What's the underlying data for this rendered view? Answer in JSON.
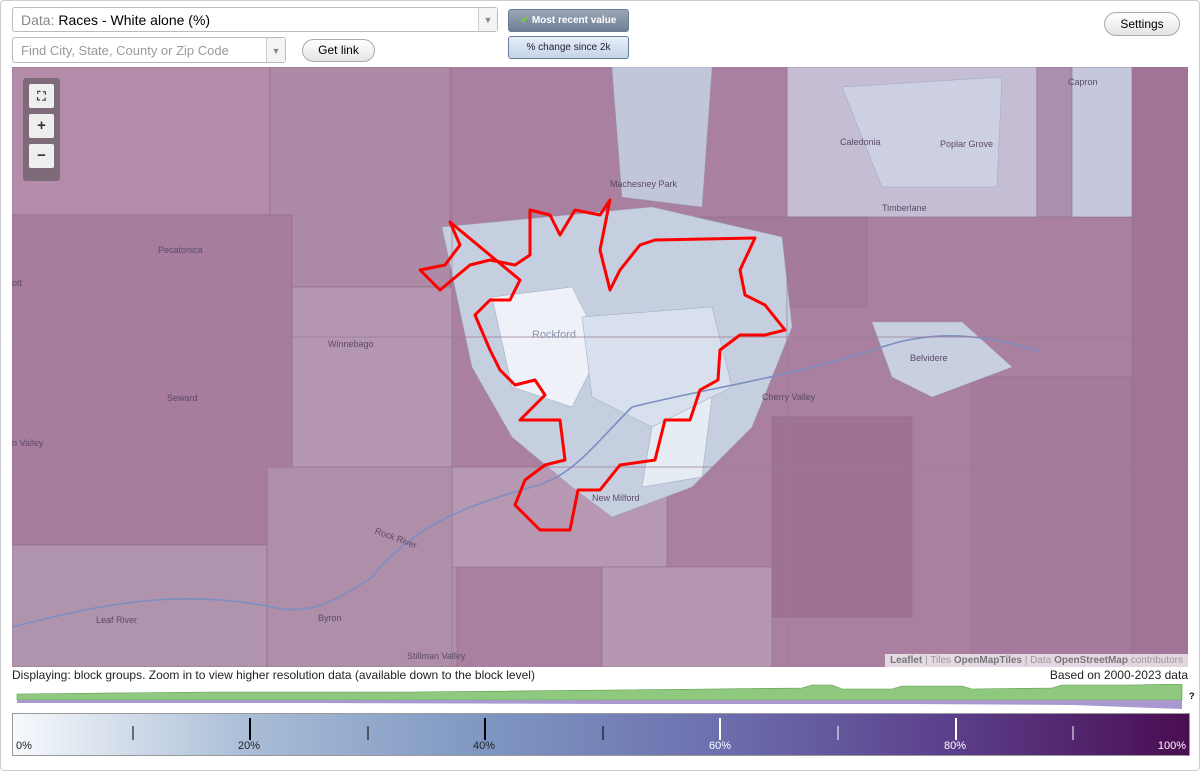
{
  "toolbar": {
    "data_label": "Data:",
    "data_value": "Races - White alone (%)",
    "search_placeholder": "Find City, State, County or Zip Code",
    "get_link": "Get link",
    "most_recent": "Most recent value",
    "change_since": "% change since 2k",
    "settings": "Settings"
  },
  "map": {
    "zoom_in": "+",
    "zoom_out": "−",
    "places": [
      "Capron",
      "Caledonia",
      "Poplar Grove",
      "Machesney Park",
      "Timberlane",
      "Pecatonica",
      "ott",
      "Winnebago",
      "Rockford",
      "Belvidere",
      "Cherry Valley",
      "Seward",
      "n Valley",
      "Rock River",
      "Byron",
      "Leaf River",
      "Stillman Valley",
      "New Milford"
    ],
    "attribution": [
      "Leaflet",
      "Tiles",
      "OpenMapTiles",
      "Data",
      "OpenStreetMap",
      "contributors"
    ]
  },
  "footer": {
    "displaying": "Displaying: block groups. Zoom in to view higher resolution data (available down to the block level)",
    "based_on": "Based on 2000-2023 data",
    "help": "?"
  },
  "legend": {
    "labels": [
      "0%",
      "20%",
      "40%",
      "60%",
      "80%",
      "100%"
    ]
  }
}
